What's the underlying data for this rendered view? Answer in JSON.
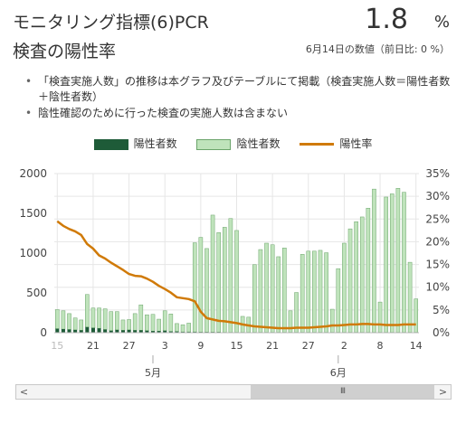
{
  "header": {
    "title_line1": "モニタリング指標(6)PCR",
    "title_line2": "検査の陽性率",
    "value": "1.8",
    "unit": "%",
    "subtitle": "6月14日の数値（前日比: 0 %）"
  },
  "notes": [
    "「検査実施人数」の推移は本グラフ及びテーブルにて掲載（検査実施人数＝陽性者数＋陰性者数）",
    "陰性確認のために行った検査の実施人数は含まない"
  ],
  "legend": {
    "positive": "陽性者数",
    "negative": "陰性者数",
    "rate": "陽性率"
  },
  "colors": {
    "positive": "#1e5b38",
    "negative": "#bfe3bb",
    "negative_border": "#6aa46a",
    "rate": "#d07a08",
    "grid": "#e6e6e6"
  },
  "scrollbar": {
    "left": "<",
    "right": ">",
    "thumb": "III"
  },
  "chart_data": {
    "type": "bar",
    "dates": [
      "2020-04-15",
      "2020-04-16",
      "2020-04-17",
      "2020-04-18",
      "2020-04-19",
      "2020-04-20",
      "2020-04-21",
      "2020-04-22",
      "2020-04-23",
      "2020-04-24",
      "2020-04-25",
      "2020-04-26",
      "2020-04-27",
      "2020-04-28",
      "2020-04-29",
      "2020-04-30",
      "2020-05-01",
      "2020-05-02",
      "2020-05-03",
      "2020-05-04",
      "2020-05-05",
      "2020-05-06",
      "2020-05-07",
      "2020-05-08",
      "2020-05-09",
      "2020-05-10",
      "2020-05-11",
      "2020-05-12",
      "2020-05-13",
      "2020-05-14",
      "2020-05-15",
      "2020-05-16",
      "2020-05-17",
      "2020-05-18",
      "2020-05-19",
      "2020-05-20",
      "2020-05-21",
      "2020-05-22",
      "2020-05-23",
      "2020-05-24",
      "2020-05-25",
      "2020-05-26",
      "2020-05-27",
      "2020-05-28",
      "2020-05-29",
      "2020-05-30",
      "2020-05-31",
      "2020-06-01",
      "2020-06-02",
      "2020-06-03",
      "2020-06-04",
      "2020-06-05",
      "2020-06-06",
      "2020-06-07",
      "2020-06-08",
      "2020-06-09",
      "2020-06-10",
      "2020-06-11",
      "2020-06-12",
      "2020-06-13",
      "2020-06-14"
    ],
    "x_tick_labels": [
      {
        "date": "2020-04-15",
        "label": "15",
        "muted": true
      },
      {
        "date": "2020-04-21",
        "label": "21"
      },
      {
        "date": "2020-04-27",
        "label": "27"
      },
      {
        "date": "2020-05-03",
        "label": "3"
      },
      {
        "date": "2020-05-09",
        "label": "9"
      },
      {
        "date": "2020-05-15",
        "label": "15"
      },
      {
        "date": "2020-05-21",
        "label": "21"
      },
      {
        "date": "2020-05-27",
        "label": "27"
      },
      {
        "date": "2020-06-02",
        "label": "2"
      },
      {
        "date": "2020-06-08",
        "label": "8"
      },
      {
        "date": "2020-06-14",
        "label": "14"
      }
    ],
    "month_labels": [
      {
        "date": "2020-05-01",
        "label": "5月"
      },
      {
        "date": "2020-06-01",
        "label": "6月"
      }
    ],
    "series": [
      {
        "name": "陽性者数",
        "axis": "left",
        "kind": "bar",
        "values": [
          50,
          45,
          40,
          35,
          30,
          70,
          60,
          55,
          40,
          25,
          35,
          30,
          35,
          30,
          30,
          25,
          20,
          20,
          25,
          15,
          15,
          10,
          10,
          10,
          8,
          8,
          8,
          8,
          5,
          5,
          5,
          5,
          5,
          5,
          5,
          5,
          5,
          5,
          5,
          5,
          5,
          5,
          5,
          5,
          5,
          5,
          5,
          5,
          5,
          5,
          5,
          5,
          5,
          5,
          5,
          5,
          5,
          5,
          5,
          5,
          5
        ]
      },
      {
        "name": "陰性者数",
        "axis": "left",
        "kind": "bar",
        "values": [
          240,
          230,
          200,
          150,
          130,
          410,
          250,
          255,
          260,
          240,
          230,
          130,
          130,
          210,
          320,
          200,
          210,
          150,
          250,
          220,
          100,
          90,
          110,
          1120,
          1190,
          1050,
          1470,
          1250,
          1320,
          1430,
          1280,
          200,
          190,
          850,
          1040,
          1120,
          1100,
          950,
          1060,
          270,
          500,
          980,
          1020,
          1020,
          1030,
          1000,
          290,
          800,
          1120,
          1300,
          1390,
          1450,
          1560,
          1800,
          380,
          1700,
          1740,
          1810,
          1760,
          880,
          420
        ]
      },
      {
        "name": "陽性率",
        "axis": "right",
        "kind": "line",
        "values": [
          24.5,
          23.5,
          22.8,
          22.3,
          21.5,
          19.5,
          18.5,
          17,
          16.3,
          15.4,
          14.6,
          13.8,
          12.9,
          12.5,
          12.4,
          11.9,
          11.2,
          10.3,
          9.6,
          8.8,
          7.8,
          7.6,
          7.4,
          6.9,
          4.6,
          3.2,
          2.9,
          2.6,
          2.5,
          2.3,
          2.1,
          1.8,
          1.6,
          1.4,
          1.3,
          1.2,
          1.1,
          1.0,
          1.0,
          1.0,
          1.1,
          1.1,
          1.1,
          1.2,
          1.3,
          1.4,
          1.6,
          1.6,
          1.7,
          1.8,
          1.8,
          1.9,
          1.9,
          1.8,
          1.8,
          1.7,
          1.7,
          1.7,
          1.8,
          1.8,
          1.8
        ]
      }
    ],
    "ylim_left": [
      0,
      2000
    ],
    "yticks_left": [
      0,
      500,
      1000,
      1500,
      2000
    ],
    "ylim_right": [
      0,
      35
    ],
    "yticks_right": [
      "0%",
      "5%",
      "10%",
      "15%",
      "20%",
      "25%",
      "30%",
      "35%"
    ],
    "grid": true,
    "legend_position": "top-center"
  }
}
